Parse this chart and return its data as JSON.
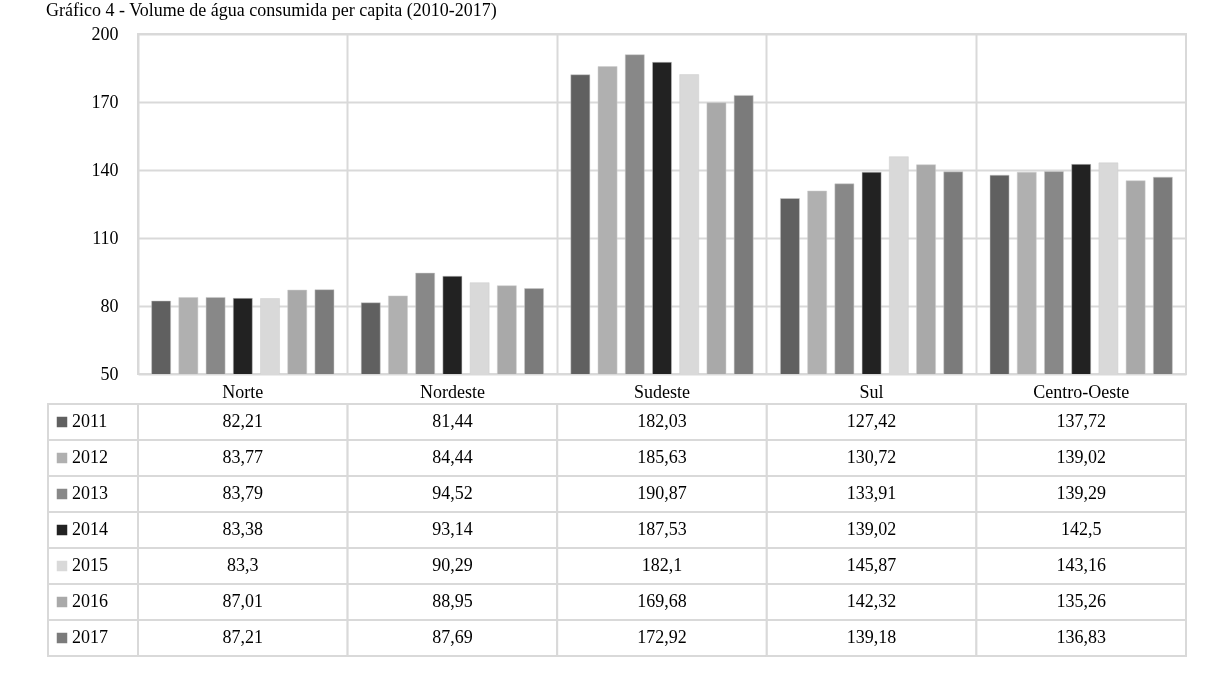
{
  "chart_data": {
    "type": "bar",
    "title": "Gráfico 4 - Volume de água consumida per capita (2010-2017)",
    "categories": [
      "Norte",
      "Nordeste",
      "Sudeste",
      "Sul",
      "Centro-Oeste"
    ],
    "series": [
      {
        "name": "2011",
        "color": "#606060",
        "values": [
          82.21,
          81.44,
          182.03,
          127.42,
          137.72
        ],
        "value_labels": [
          "82,21",
          "81,44",
          "182,03",
          "127,42",
          "137,72"
        ]
      },
      {
        "name": "2012",
        "color": "#b0b0b0",
        "values": [
          83.77,
          84.44,
          185.63,
          130.72,
          139.02
        ],
        "value_labels": [
          "83,77",
          "84,44",
          "185,63",
          "130,72",
          "139,02"
        ]
      },
      {
        "name": "2013",
        "color": "#888888",
        "values": [
          83.79,
          94.52,
          190.87,
          133.91,
          139.29
        ],
        "value_labels": [
          "83,79",
          "94,52",
          "190,87",
          "133,91",
          "139,29"
        ]
      },
      {
        "name": "2014",
        "color": "#222222",
        "values": [
          83.38,
          93.14,
          187.53,
          139.02,
          142.5
        ],
        "value_labels": [
          "83,38",
          "93,14",
          "187,53",
          "139,02",
          "142,5"
        ]
      },
      {
        "name": "2015",
        "color": "#d9d9d9",
        "values": [
          83.3,
          90.29,
          182.1,
          145.87,
          143.16
        ],
        "value_labels": [
          "83,3",
          "90,29",
          "182,1",
          "145,87",
          "143,16"
        ]
      },
      {
        "name": "2016",
        "color": "#a9a9a9",
        "values": [
          87.01,
          88.95,
          169.68,
          142.32,
          135.26
        ],
        "value_labels": [
          "87,01",
          "88,95",
          "169,68",
          "142,32",
          "135,26"
        ]
      },
      {
        "name": "2017",
        "color": "#7b7b7b",
        "values": [
          87.21,
          87.69,
          172.92,
          139.18,
          136.83
        ],
        "value_labels": [
          "87,21",
          "87,69",
          "172,92",
          "139,18",
          "136,83"
        ]
      }
    ],
    "ylim": [
      50,
      200
    ],
    "yticks": [
      50,
      80,
      110,
      140,
      170,
      200
    ],
    "grid": true,
    "legend": "bottom left"
  }
}
